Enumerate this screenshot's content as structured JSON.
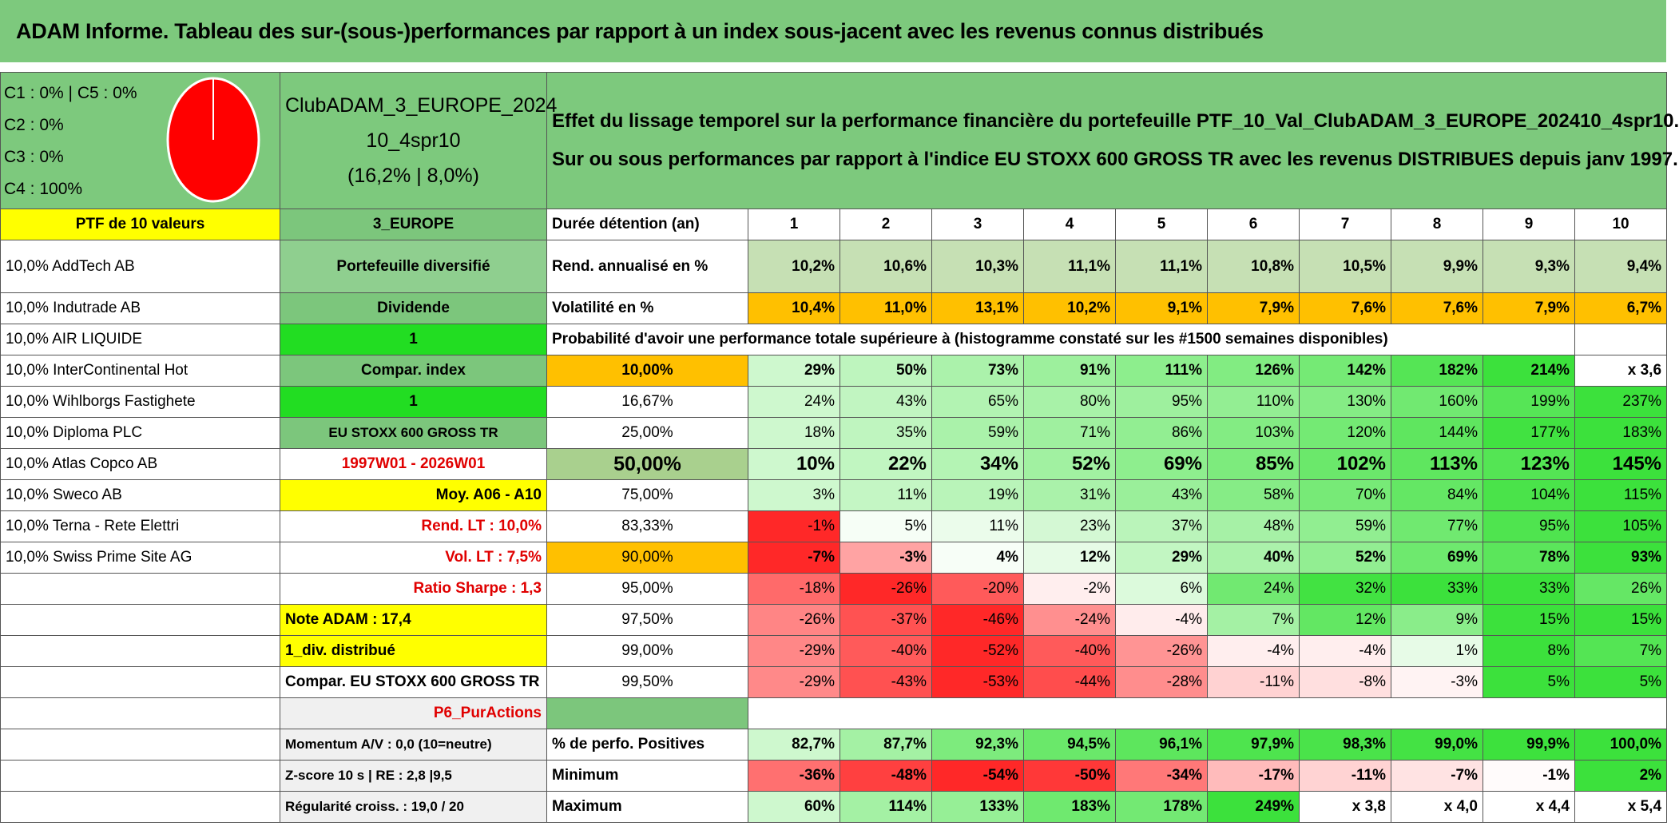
{
  "title": "ADAM Informe. Tableau des sur-(sous-)performances par rapport à un index sous-jacent avec les revenus connus distribués",
  "pie": {
    "legend": [
      "C1 : 0% | C5 : 0%",
      "C2 : 0%",
      "C3 : 0%",
      "C4 : 100%"
    ],
    "values": [
      0,
      0,
      0,
      100,
      0
    ],
    "colors": [
      "#4472c4",
      "#ffc000",
      "#70ad47",
      "#ff0000",
      "#7030a0"
    ]
  },
  "portfolio": [
    "ClubADAM_3_EUROPE_2024",
    "10_4spr10",
    "(16,2% | 8,0%)"
  ],
  "description": [
    "Effet du lissage temporel sur la performance financière du portefeuille PTF_10_Val_ClubADAM_3_EUROPE_202410_4spr10.",
    "Sur ou sous performances par rapport à l'indice EU STOXX 600 GROSS TR avec les revenus DISTRIBUES depuis janv 1997."
  ],
  "rows": [
    [
      "PTF de 10 valeurs",
      "3_EUROPE",
      "Durée détention (an)",
      "1",
      "2",
      "3",
      "4",
      "5",
      "6",
      "7",
      "8",
      "9",
      "10"
    ],
    [
      "10,0% AddTech AB",
      "Portefeuille diversifié",
      "Rend. annualisé en %",
      "10,2%",
      "10,6%",
      "10,3%",
      "11,1%",
      "11,1%",
      "10,8%",
      "10,5%",
      "9,9%",
      "9,3%",
      "9,4%"
    ],
    [
      "10,0% Indutrade AB",
      "Dividende",
      "Volatilité en %",
      "10,4%",
      "11,0%",
      "13,1%",
      "10,2%",
      "9,1%",
      "7,9%",
      "7,6%",
      "7,6%",
      "7,9%",
      "6,7%"
    ],
    [
      "10,0% AIR LIQUIDE",
      "1",
      "Probabilité d'avoir une performance totale supérieure à (histogramme constaté sur les #1500 semaines disponibles)"
    ],
    [
      "10,0% InterContinental Hot",
      "Compar. index",
      "10,00%",
      "29%",
      "50%",
      "73%",
      "91%",
      "111%",
      "126%",
      "142%",
      "182%",
      "214%",
      "x 3,6"
    ],
    [
      "10,0% Wihlborgs Fastighete",
      "1",
      "16,67%",
      "24%",
      "43%",
      "65%",
      "80%",
      "95%",
      "110%",
      "130%",
      "160%",
      "199%",
      "237%"
    ],
    [
      "10,0% Diploma PLC",
      "EU STOXX 600 GROSS TR",
      "25,00%",
      "18%",
      "35%",
      "59%",
      "71%",
      "86%",
      "103%",
      "120%",
      "144%",
      "177%",
      "183%"
    ],
    [
      "10,0% Atlas Copco AB",
      "1997W01 - 2026W01",
      "50,00%",
      "10%",
      "22%",
      "34%",
      "52%",
      "69%",
      "85%",
      "102%",
      "113%",
      "123%",
      "145%"
    ],
    [
      "10,0% Sweco AB",
      "Moy. A06 - A10",
      "75,00%",
      "3%",
      "11%",
      "19%",
      "31%",
      "43%",
      "58%",
      "70%",
      "84%",
      "104%",
      "115%"
    ],
    [
      "10,0% Terna - Rete Elettri",
      "Rend. LT : 10,0%",
      "83,33%",
      "-1%",
      "5%",
      "11%",
      "23%",
      "37%",
      "48%",
      "59%",
      "77%",
      "95%",
      "105%"
    ],
    [
      "10,0% Swiss Prime Site AG",
      "Vol. LT : 7,5%",
      "90,00%",
      "-7%",
      "-3%",
      "4%",
      "12%",
      "29%",
      "40%",
      "52%",
      "69%",
      "78%",
      "93%"
    ],
    [
      null,
      "Ratio Sharpe : 1,3",
      "95,00%",
      "-18%",
      "-26%",
      "-20%",
      "-2%",
      "6%",
      "24%",
      "32%",
      "33%",
      "33%",
      "26%"
    ],
    [
      null,
      "Note ADAM : 17,4",
      "97,50%",
      "-26%",
      "-37%",
      "-46%",
      "-24%",
      "-4%",
      "7%",
      "12%",
      "9%",
      "15%",
      "15%"
    ],
    [
      null,
      "1_div. distribué",
      "99,00%",
      "-29%",
      "-40%",
      "-52%",
      "-40%",
      "-26%",
      "-4%",
      "-4%",
      "1%",
      "8%",
      "7%"
    ],
    [
      null,
      "Compar. EU STOXX 600 GROSS TR",
      "99,50%",
      "-29%",
      "-43%",
      "-53%",
      "-44%",
      "-28%",
      "-11%",
      "-8%",
      "-3%",
      "5%",
      "5%"
    ],
    [
      null,
      "P6_PurActions"
    ],
    [
      null,
      "Momentum A/V : 0,0 (10=neutre)",
      "% de perfo. Positives",
      "82,7%",
      "87,7%",
      "92,3%",
      "94,5%",
      "96,1%",
      "97,9%",
      "98,3%",
      "99,0%",
      "99,9%",
      "100,0%"
    ],
    [
      null,
      "Z-score 10 s | RE : 2,8 |9,5",
      "Minimum",
      "-36%",
      "-48%",
      "-54%",
      "-50%",
      "-34%",
      "-17%",
      "-11%",
      "-7%",
      "-1%",
      "2%"
    ],
    [
      null,
      "Régularité croiss. : 19,0 / 20",
      "Maximum",
      "60%",
      "114%",
      "133%",
      "183%",
      "178%",
      "249%",
      "x 3,8",
      "x 4,0",
      "x 4,4",
      "x 5,4"
    ]
  ]
}
